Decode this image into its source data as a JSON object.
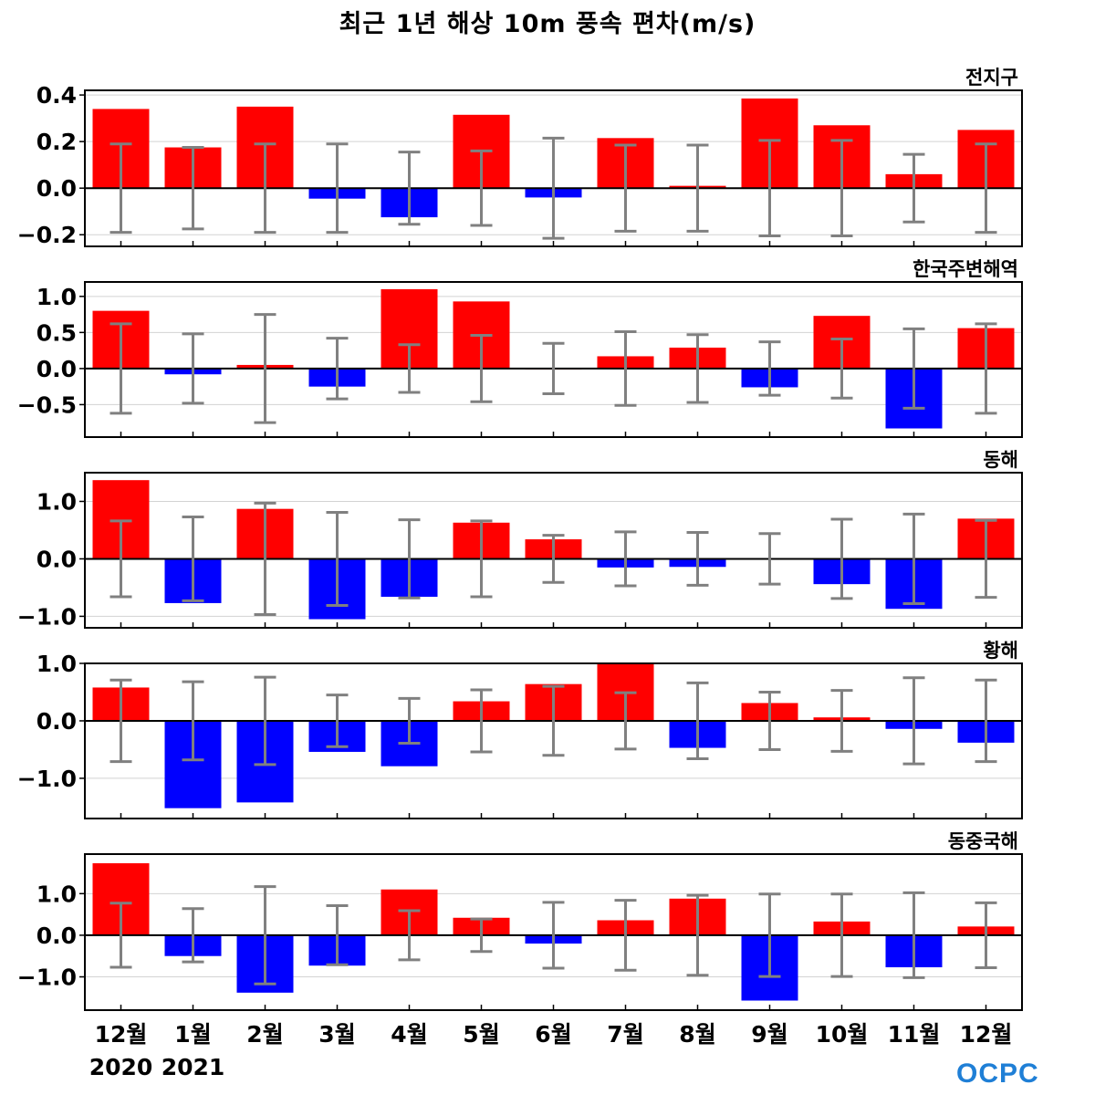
{
  "title": "최근 1년 해상 10m 풍속 편차(m/s)",
  "colors": {
    "positive": "#ff0000",
    "negative": "#0000ff",
    "error_bar": "#808080",
    "grid": "#d3d3d3",
    "zero_line": "#000000"
  },
  "x_labels": [
    "12월",
    "1월",
    "2월",
    "3월",
    "4월",
    "5월",
    "6월",
    "7월",
    "8월",
    "9월",
    "10월",
    "11월",
    "12월"
  ],
  "year_labels": [
    "2020",
    "2021"
  ],
  "logo_text": "OCPC",
  "chart_data": [
    {
      "type": "bar",
      "title": "전지구",
      "categories": [
        "12월",
        "1월",
        "2월",
        "3월",
        "4월",
        "5월",
        "6월",
        "7월",
        "8월",
        "9월",
        "10월",
        "11월",
        "12월"
      ],
      "values": [
        0.34,
        0.175,
        0.35,
        -0.045,
        -0.125,
        0.315,
        -0.04,
        0.215,
        0.01,
        0.385,
        0.27,
        0.06,
        0.25
      ],
      "error": [
        0.19,
        0.175,
        0.19,
        0.19,
        0.155,
        0.16,
        0.215,
        0.185,
        0.185,
        0.205,
        0.205,
        0.145,
        0.19
      ],
      "ylim": [
        -0.25,
        0.42
      ],
      "yticks": [
        -0.2,
        0.0,
        0.2,
        0.4
      ],
      "ytick_labels": [
        "−0.2",
        "0.0",
        "0.2",
        "0.4"
      ]
    },
    {
      "type": "bar",
      "title": "한국주변해역",
      "categories": [
        "12월",
        "1월",
        "2월",
        "3월",
        "4월",
        "5월",
        "6월",
        "7월",
        "8월",
        "9월",
        "10월",
        "11월",
        "12월"
      ],
      "values": [
        0.8,
        -0.08,
        0.05,
        -0.25,
        1.1,
        0.93,
        0.0,
        0.17,
        0.29,
        -0.26,
        0.73,
        -0.83,
        0.56
      ],
      "error": [
        0.62,
        0.48,
        0.75,
        0.42,
        0.33,
        0.46,
        0.35,
        0.51,
        0.47,
        0.37,
        0.41,
        0.55,
        0.62
      ],
      "ylim": [
        -0.95,
        1.2
      ],
      "yticks": [
        -0.5,
        0.0,
        0.5,
        1.0
      ],
      "ytick_labels": [
        "−0.5",
        "0.0",
        "0.5",
        "1.0"
      ]
    },
    {
      "type": "bar",
      "title": "동해",
      "categories": [
        "12월",
        "1월",
        "2월",
        "3월",
        "4월",
        "5월",
        "6월",
        "7월",
        "8월",
        "9월",
        "10월",
        "11월",
        "12월"
      ],
      "values": [
        1.37,
        -0.77,
        0.87,
        -1.05,
        -0.66,
        0.63,
        0.34,
        -0.15,
        -0.14,
        -0.01,
        -0.44,
        -0.87,
        0.7
      ],
      "error": [
        0.66,
        0.73,
        0.97,
        0.81,
        0.68,
        0.66,
        0.41,
        0.47,
        0.46,
        0.44,
        0.69,
        0.78,
        0.67
      ],
      "ylim": [
        -1.2,
        1.5
      ],
      "yticks": [
        -1.0,
        0.0,
        1.0
      ],
      "ytick_labels": [
        "−1.0",
        "0.0",
        "1.0"
      ]
    },
    {
      "type": "bar",
      "title": "황해",
      "categories": [
        "12월",
        "1월",
        "2월",
        "3월",
        "4월",
        "5월",
        "6월",
        "7월",
        "8월",
        "9월",
        "10월",
        "11월",
        "12월"
      ],
      "values": [
        0.58,
        -1.52,
        -1.42,
        -0.54,
        -0.79,
        0.34,
        0.64,
        1.01,
        -0.47,
        0.31,
        0.06,
        -0.14,
        -0.38
      ],
      "error": [
        0.71,
        0.68,
        0.76,
        0.45,
        0.39,
        0.54,
        0.6,
        0.49,
        0.66,
        0.5,
        0.53,
        0.75,
        0.71
      ],
      "ylim": [
        -1.7,
        1.0
      ],
      "yticks": [
        -1.0,
        0.0,
        1.0
      ],
      "ytick_labels": [
        "−1.0",
        "0.0",
        "1.0"
      ]
    },
    {
      "type": "bar",
      "title": "동중국해",
      "categories": [
        "12월",
        "1월",
        "2월",
        "3월",
        "4월",
        "5월",
        "6월",
        "7월",
        "8월",
        "9월",
        "10월",
        "11월",
        "12월"
      ],
      "values": [
        1.73,
        -0.5,
        -1.38,
        -0.73,
        1.1,
        0.42,
        -0.2,
        0.36,
        0.88,
        -1.57,
        0.33,
        -0.77,
        0.21
      ],
      "error": [
        0.77,
        0.64,
        1.17,
        0.71,
        0.59,
        0.39,
        0.79,
        0.84,
        0.96,
        0.99,
        0.99,
        1.02,
        0.78
      ],
      "ylim": [
        -1.8,
        1.95
      ],
      "yticks": [
        -1.0,
        0.0,
        1.0
      ],
      "ytick_labels": [
        "−1.0",
        "0.0",
        "1.0"
      ]
    }
  ]
}
